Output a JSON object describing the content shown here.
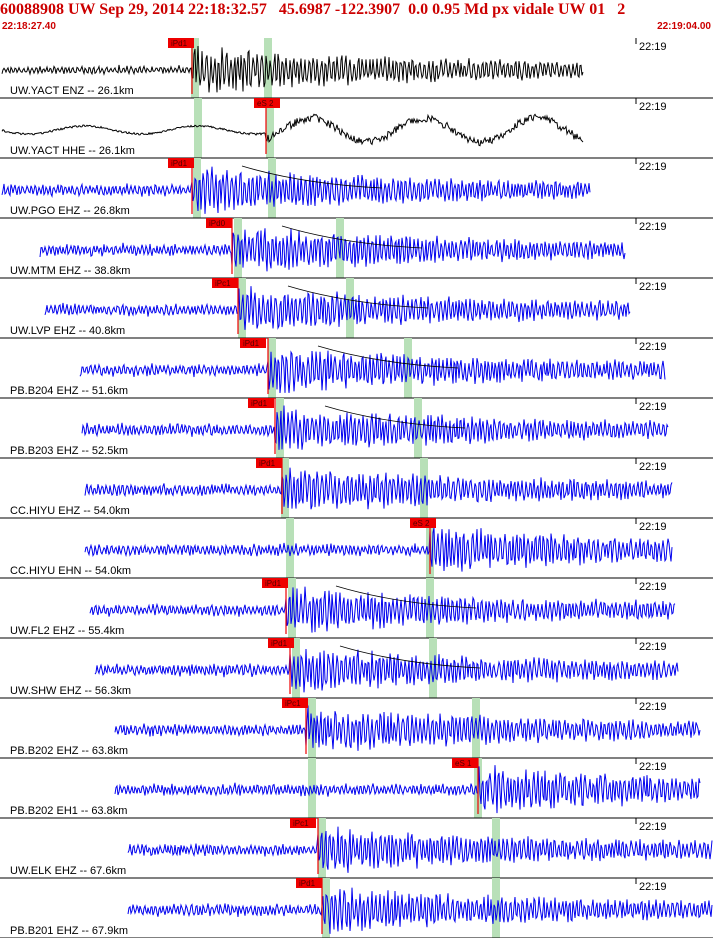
{
  "header": {
    "title": "60088908 UW Sep 29, 2014 22:18:32.57   45.6987 -122.3907  0.0 0.95 Md px vidale UW 01   2",
    "start_time": "22:18:27.40",
    "end_time": "22:19:04.00"
  },
  "colors": {
    "title": "#cc0000",
    "trace_black": "#000000",
    "trace_blue": "#0000ee",
    "pick_box": "#ee0000",
    "pick_line": "#ee0000",
    "phase_band": "#b8e0b8",
    "separator": "#000000"
  },
  "minute_tick_label": "22:19",
  "panels": [
    {
      "label": "UW.YACT ENZ -- 26.1km",
      "color": "black",
      "pick": "iPd1"
    },
    {
      "label": "UW.YACT HHE -- 26.1km",
      "color": "black",
      "pick": "eS 2"
    },
    {
      "label": "UW.PGO EHZ -- 26.8km",
      "color": "blue",
      "pick": "iPd1"
    },
    {
      "label": "UW.MTM EHZ -- 38.8km",
      "color": "blue",
      "pick": "iPd0"
    },
    {
      "label": "UW.LVP EHZ -- 40.8km",
      "color": "blue",
      "pick": "iPc1"
    },
    {
      "label": "PB.B204 EHZ -- 51.6km",
      "color": "blue",
      "pick": "iPd1"
    },
    {
      "label": "PB.B203 EHZ -- 52.5km",
      "color": "blue",
      "pick": "iPd1"
    },
    {
      "label": "CC.HIYU EHZ -- 54.0km",
      "color": "blue",
      "pick": "iPd1"
    },
    {
      "label": "CC.HIYU EHN -- 54.0km",
      "color": "blue",
      "pick": "eS 2"
    },
    {
      "label": "UW.FL2 EHZ -- 55.4km",
      "color": "blue",
      "pick": "iPd1"
    },
    {
      "label": "UW.SHW EHZ -- 56.3km",
      "color": "blue",
      "pick": "iPd1"
    },
    {
      "label": "PB.B202 EHZ -- 63.8km",
      "color": "blue",
      "pick": "iPc1"
    },
    {
      "label": "PB.B202 EH1 -- 63.8km",
      "color": "blue",
      "pick": "eS 1"
    },
    {
      "label": "UW.ELK EHZ -- 67.6km",
      "color": "blue",
      "pick": "iPc1"
    },
    {
      "label": "PB.B201 EHZ -- 67.9km",
      "color": "blue",
      "pick": "iPd1"
    }
  ]
}
